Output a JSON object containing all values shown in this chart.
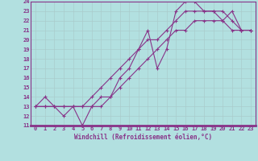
{
  "xlabel": "Windchill (Refroidissement éolien,°C)",
  "ylabel": "",
  "xlim": [
    -0.5,
    23.5
  ],
  "ylim": [
    11,
    24
  ],
  "xticks": [
    0,
    1,
    2,
    3,
    4,
    5,
    6,
    7,
    8,
    9,
    10,
    11,
    12,
    13,
    14,
    15,
    16,
    17,
    18,
    19,
    20,
    21,
    22,
    23
  ],
  "yticks": [
    11,
    12,
    13,
    14,
    15,
    16,
    17,
    18,
    19,
    20,
    21,
    22,
    23,
    24
  ],
  "background_color": "#b2e0e0",
  "grid_color": "#aacccc",
  "line_color": "#883388",
  "line1_x": [
    0,
    1,
    2,
    3,
    4,
    5,
    6,
    7,
    8,
    9,
    10,
    11,
    12,
    13,
    14,
    15,
    16,
    17,
    18,
    19,
    20,
    21,
    22,
    23
  ],
  "line1_y": [
    13,
    14,
    13,
    12,
    13,
    11,
    13,
    14,
    14,
    16,
    17,
    19,
    21,
    17,
    19,
    23,
    24,
    24,
    23,
    23,
    22,
    23,
    21,
    21
  ],
  "line2_x": [
    0,
    1,
    2,
    3,
    4,
    5,
    6,
    7,
    8,
    9,
    10,
    11,
    12,
    13,
    14,
    15,
    16,
    17,
    18,
    19,
    20,
    21,
    22,
    23
  ],
  "line2_y": [
    13,
    13,
    13,
    13,
    13,
    13,
    14,
    15,
    16,
    17,
    18,
    19,
    20,
    20,
    21,
    22,
    23,
    23,
    23,
    23,
    23,
    22,
    21,
    21
  ],
  "line3_x": [
    0,
    1,
    2,
    3,
    4,
    5,
    6,
    7,
    8,
    9,
    10,
    11,
    12,
    13,
    14,
    15,
    16,
    17,
    18,
    19,
    20,
    21,
    22,
    23
  ],
  "line3_y": [
    13,
    13,
    13,
    13,
    13,
    13,
    13,
    13,
    14,
    15,
    16,
    17,
    18,
    19,
    20,
    21,
    21,
    22,
    22,
    22,
    22,
    21,
    21,
    21
  ],
  "tick_fontsize": 5,
  "xlabel_fontsize": 5.5,
  "marker": "+",
  "markersize": 3,
  "linewidth": 0.8
}
